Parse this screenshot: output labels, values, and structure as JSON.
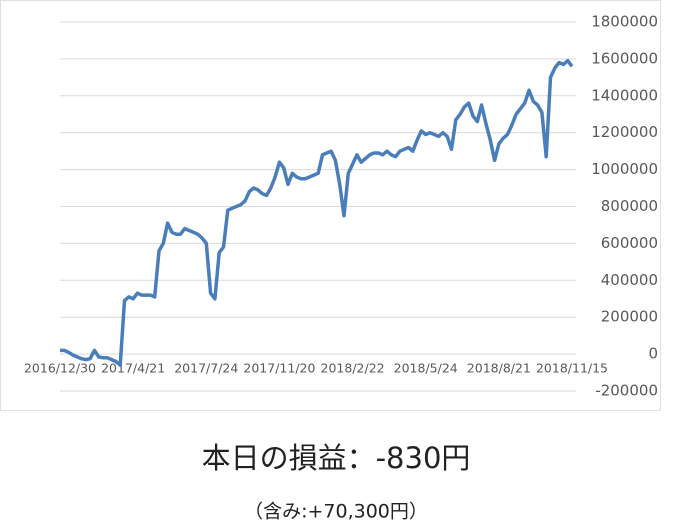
{
  "chart_data": {
    "type": "line",
    "categories": [
      "2016/12/30",
      null,
      null,
      null,
      null,
      null,
      null,
      null,
      null,
      null,
      null,
      null,
      null,
      null,
      null,
      null,
      null,
      "2017/4/21",
      null,
      null,
      null,
      null,
      null,
      null,
      null,
      null,
      null,
      null,
      null,
      null,
      null,
      null,
      null,
      null,
      "2017/7/24",
      null,
      null,
      null,
      null,
      null,
      null,
      null,
      null,
      null,
      null,
      null,
      null,
      null,
      null,
      null,
      null,
      "2017/11/20",
      null,
      null,
      null,
      null,
      null,
      null,
      null,
      null,
      null,
      null,
      null,
      null,
      null,
      null,
      null,
      null,
      "2018/2/22",
      null,
      null,
      null,
      null,
      null,
      null,
      null,
      null,
      null,
      null,
      null,
      null,
      null,
      null,
      null,
      null,
      "2018/5/24",
      null,
      null,
      null,
      null,
      null,
      null,
      null,
      null,
      null,
      null,
      null,
      null,
      null,
      null,
      null,
      null,
      "2018/8/21",
      null,
      null,
      null,
      null,
      null,
      null,
      null,
      null,
      null,
      null,
      null,
      null,
      null,
      null,
      null,
      null,
      "2018/11/15"
    ],
    "series": [
      {
        "color": "#4a7ebb",
        "values": [
          20000,
          20000,
          10000,
          -5000,
          -15000,
          -25000,
          -30000,
          -25000,
          20000,
          -15000,
          -20000,
          -20000,
          -30000,
          -40000,
          -60000,
          290000,
          310000,
          300000,
          330000,
          320000,
          320000,
          320000,
          310000,
          560000,
          600000,
          710000,
          660000,
          650000,
          650000,
          680000,
          670000,
          660000,
          650000,
          630000,
          600000,
          330000,
          300000,
          550000,
          580000,
          780000,
          790000,
          800000,
          810000,
          830000,
          880000,
          900000,
          890000,
          870000,
          860000,
          900000,
          960000,
          1040000,
          1010000,
          920000,
          980000,
          960000,
          950000,
          950000,
          960000,
          970000,
          980000,
          1080000,
          1090000,
          1100000,
          1050000,
          920000,
          750000,
          980000,
          1030000,
          1080000,
          1040000,
          1060000,
          1080000,
          1090000,
          1090000,
          1080000,
          1100000,
          1080000,
          1070000,
          1100000,
          1110000,
          1120000,
          1100000,
          1160000,
          1210000,
          1190000,
          1200000,
          1190000,
          1180000,
          1200000,
          1180000,
          1110000,
          1270000,
          1300000,
          1340000,
          1360000,
          1290000,
          1260000,
          1350000,
          1250000,
          1160000,
          1050000,
          1140000,
          1170000,
          1190000,
          1240000,
          1300000,
          1330000,
          1360000,
          1430000,
          1370000,
          1350000,
          1310000,
          1070000,
          1500000,
          1550000,
          1580000,
          1570000,
          1590000,
          1560000
        ]
      }
    ],
    "ylim": [
      -200000,
      1800000
    ],
    "yticks": [
      -200000,
      0,
      200000,
      400000,
      600000,
      800000,
      1000000,
      1200000,
      1400000,
      1600000,
      1800000
    ],
    "grid": true
  },
  "daily_pnl": "本日の損益：-830円",
  "unrealized": "（含み:+70,300円）"
}
